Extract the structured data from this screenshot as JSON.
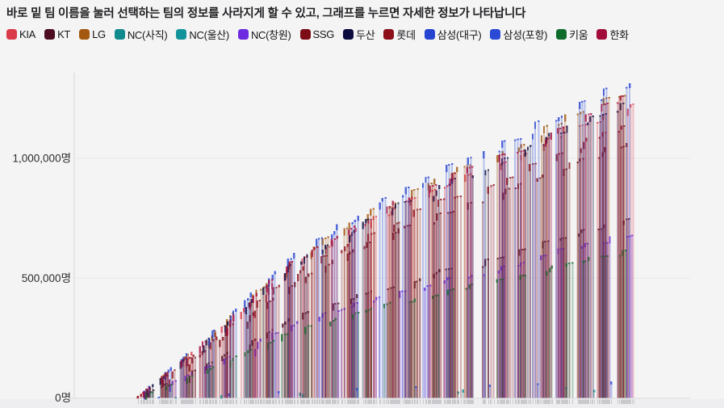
{
  "header": {
    "title": "바로 밑 팀 이름을 눌러 선택하는 팀의 정보를 사라지게 할 수 있고, 그래프를 누르면 자세한 정보가 나타납니다"
  },
  "page": {
    "background": "#f4f4f5",
    "axis_color": "#d8d8dc",
    "gridline_color": "#e8e8eb",
    "tick_color": "#c9c9cd"
  },
  "chart_data": {
    "type": "bar",
    "title": "",
    "xlabel": "",
    "ylabel": "",
    "unit": "명",
    "y_ticks": [
      {
        "label": "1,000,000명",
        "value": 1000000
      },
      {
        "label": "500,000명",
        "value": 500000
      },
      {
        "label": "0명",
        "value": 0
      }
    ],
    "ylim": [
      0,
      1400000
    ],
    "x_tick_labels_visible": false,
    "grid": true,
    "legend_position": "top",
    "mid_season_gap_fraction": 0.685,
    "shape_checkpoints": [
      [
        0,
        0
      ],
      [
        0.15,
        0.2
      ],
      [
        0.31,
        0.44
      ],
      [
        0.5,
        0.62
      ],
      [
        0.685,
        0.755
      ],
      [
        0.85,
        0.9
      ],
      [
        1,
        1
      ]
    ],
    "series": [
      {
        "name": "KIA",
        "color": "#da3b4b",
        "games": 72,
        "final_cumulative": 1230000
      },
      {
        "name": "KT",
        "color": "#4e0d20",
        "games": 72,
        "final_cumulative": 745000
      },
      {
        "name": "LG",
        "color": "#a3570f",
        "games": 72,
        "final_cumulative": 1290000
      },
      {
        "name": "NC(사직)",
        "color": "#118a8d",
        "games": 4,
        "final_cumulative": 48000
      },
      {
        "name": "NC(울산)",
        "color": "#13949a",
        "games": 4,
        "final_cumulative": 36000
      },
      {
        "name": "NC(창원)",
        "color": "#6d2ae0",
        "games": 70,
        "final_cumulative": 685000
      },
      {
        "name": "SSG",
        "color": "#7c0c15",
        "games": 72,
        "final_cumulative": 1075000
      },
      {
        "name": "두산",
        "color": "#0c0c40",
        "games": 72,
        "final_cumulative": 1240000
      },
      {
        "name": "롯데",
        "color": "#8c0f1a",
        "games": 66,
        "final_cumulative": 1150000
      },
      {
        "name": "삼성(대구)",
        "color": "#2544d0",
        "games": 68,
        "final_cumulative": 1330000
      },
      {
        "name": "삼성(포항)",
        "color": "#2a4ad6",
        "games": 8,
        "final_cumulative": 72000
      },
      {
        "name": "키움",
        "color": "#0e6b2a",
        "games": 72,
        "final_cumulative": 620000
      },
      {
        "name": "한화",
        "color": "#a30d3a",
        "games": 72,
        "final_cumulative": 1265000
      }
    ]
  }
}
